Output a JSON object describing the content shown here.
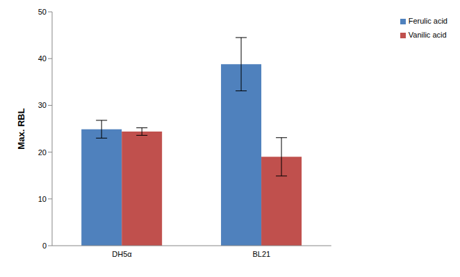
{
  "chart_data": {
    "type": "bar",
    "y_label": "Max. RBL",
    "categories": [
      "DH5α",
      "BL21"
    ],
    "series": [
      {
        "name": "Ferulic acid",
        "color": "#4f81bd",
        "values": [
          24.9,
          38.8
        ],
        "errors": [
          1.9,
          5.7
        ]
      },
      {
        "name": "Vanilic acid",
        "color": "#c0504d",
        "values": [
          24.4,
          19.0
        ],
        "errors": [
          0.8,
          4.1
        ]
      }
    ],
    "ylim": [
      0,
      50
    ],
    "yticks": [
      0,
      10,
      20,
      30,
      40,
      50
    ],
    "grid": false,
    "legend": "upper right"
  }
}
